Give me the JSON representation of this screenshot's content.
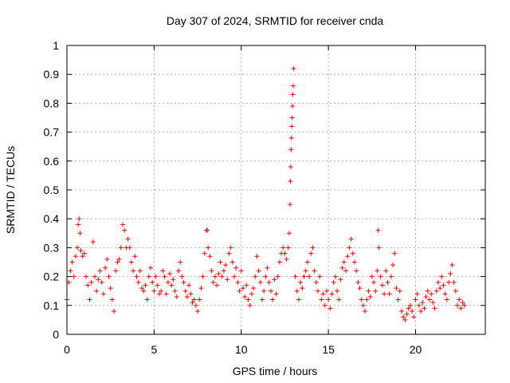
{
  "chart_data": {
    "type": "scatter",
    "title": "Day 307 of 2024, SRMTID for receiver cnda",
    "xlabel": "GPS time / hours",
    "ylabel": "SRMTID / TECUs",
    "xlim": [
      0,
      24
    ],
    "ylim": [
      0,
      1
    ],
    "xticks": [
      0,
      5,
      10,
      15,
      20
    ],
    "xtick_labels": [
      "0",
      "5",
      "10",
      "15",
      "20"
    ],
    "yticks": [
      0,
      0.1,
      0.2,
      0.3,
      0.4,
      0.5,
      0.6,
      0.7,
      0.8,
      0.9,
      1
    ],
    "ytick_labels": [
      "0",
      "0.1",
      "0.2",
      "0.3",
      "0.4",
      "0.5",
      "0.6",
      "0.7",
      "0.8",
      "0.9",
      "1"
    ],
    "grid": true,
    "marker": "+",
    "marker_color": "#ff0000",
    "series": [
      {
        "name": "SRMTID",
        "points": [
          [
            0.0,
            0.12
          ],
          [
            0.1,
            0.18
          ],
          [
            0.2,
            0.22
          ],
          [
            0.3,
            0.25
          ],
          [
            0.4,
            0.2
          ],
          [
            0.5,
            0.27
          ],
          [
            0.6,
            0.3
          ],
          [
            0.65,
            0.38
          ],
          [
            0.7,
            0.4
          ],
          [
            0.75,
            0.35
          ],
          [
            0.8,
            0.29
          ],
          [
            0.9,
            0.27
          ],
          [
            1.0,
            0.28
          ],
          [
            1.1,
            0.2
          ],
          [
            1.2,
            0.17
          ],
          [
            1.3,
            0.12
          ],
          [
            1.4,
            0.18
          ],
          [
            1.5,
            0.32
          ],
          [
            1.6,
            0.2
          ],
          [
            1.7,
            0.15
          ],
          [
            1.8,
            0.19
          ],
          [
            1.9,
            0.22
          ],
          [
            2.0,
            0.18
          ],
          [
            2.1,
            0.14
          ],
          [
            2.2,
            0.23
          ],
          [
            2.3,
            0.26
          ],
          [
            2.4,
            0.2
          ],
          [
            2.5,
            0.16
          ],
          [
            2.6,
            0.12
          ],
          [
            2.7,
            0.08
          ],
          [
            2.8,
            0.22
          ],
          [
            2.9,
            0.25
          ],
          [
            3.0,
            0.26
          ],
          [
            3.1,
            0.3
          ],
          [
            3.2,
            0.38
          ],
          [
            3.3,
            0.36
          ],
          [
            3.4,
            0.3
          ],
          [
            3.5,
            0.33
          ],
          [
            3.6,
            0.3
          ],
          [
            3.7,
            0.25
          ],
          [
            3.8,
            0.22
          ],
          [
            3.9,
            0.27
          ],
          [
            4.0,
            0.2
          ],
          [
            4.1,
            0.18
          ],
          [
            4.2,
            0.22
          ],
          [
            4.3,
            0.16
          ],
          [
            4.4,
            0.15
          ],
          [
            4.5,
            0.17
          ],
          [
            4.6,
            0.12
          ],
          [
            4.7,
            0.2
          ],
          [
            4.8,
            0.23
          ],
          [
            4.9,
            0.18
          ],
          [
            5.0,
            0.15
          ],
          [
            5.1,
            0.2
          ],
          [
            5.2,
            0.17
          ],
          [
            5.3,
            0.14
          ],
          [
            5.4,
            0.15
          ],
          [
            5.5,
            0.22
          ],
          [
            5.6,
            0.2
          ],
          [
            5.7,
            0.14
          ],
          [
            5.8,
            0.18
          ],
          [
            5.9,
            0.21
          ],
          [
            6.0,
            0.17
          ],
          [
            6.1,
            0.19
          ],
          [
            6.2,
            0.15
          ],
          [
            6.3,
            0.13
          ],
          [
            6.4,
            0.22
          ],
          [
            6.5,
            0.25
          ],
          [
            6.6,
            0.2
          ],
          [
            6.7,
            0.18
          ],
          [
            6.8,
            0.15
          ],
          [
            6.9,
            0.13
          ],
          [
            7.0,
            0.17
          ],
          [
            7.1,
            0.14
          ],
          [
            7.2,
            0.11
          ],
          [
            7.3,
            0.12
          ],
          [
            7.4,
            0.1
          ],
          [
            7.5,
            0.08
          ],
          [
            7.6,
            0.12
          ],
          [
            7.7,
            0.16
          ],
          [
            7.8,
            0.2
          ],
          [
            7.9,
            0.28
          ],
          [
            8.0,
            0.36
          ],
          [
            8.05,
            0.36
          ],
          [
            8.1,
            0.3
          ],
          [
            8.2,
            0.27
          ],
          [
            8.3,
            0.22
          ],
          [
            8.4,
            0.18
          ],
          [
            8.5,
            0.2
          ],
          [
            8.6,
            0.17
          ],
          [
            8.7,
            0.21
          ],
          [
            8.8,
            0.25
          ],
          [
            8.9,
            0.2
          ],
          [
            9.0,
            0.22
          ],
          [
            9.1,
            0.24
          ],
          [
            9.2,
            0.19
          ],
          [
            9.3,
            0.28
          ],
          [
            9.4,
            0.3
          ],
          [
            9.5,
            0.25
          ],
          [
            9.6,
            0.2
          ],
          [
            9.7,
            0.23
          ],
          [
            9.8,
            0.18
          ],
          [
            9.9,
            0.15
          ],
          [
            10.0,
            0.22
          ],
          [
            10.1,
            0.16
          ],
          [
            10.2,
            0.13
          ],
          [
            10.3,
            0.17
          ],
          [
            10.4,
            0.12
          ],
          [
            10.5,
            0.1
          ],
          [
            10.6,
            0.14
          ],
          [
            10.7,
            0.16
          ],
          [
            10.8,
            0.2
          ],
          [
            10.9,
            0.27
          ],
          [
            11.0,
            0.22
          ],
          [
            11.1,
            0.18
          ],
          [
            11.2,
            0.12
          ],
          [
            11.3,
            0.15
          ],
          [
            11.4,
            0.2
          ],
          [
            11.5,
            0.23
          ],
          [
            11.6,
            0.18
          ],
          [
            11.7,
            0.15
          ],
          [
            11.8,
            0.12
          ],
          [
            11.9,
            0.19
          ],
          [
            12.0,
            0.14
          ],
          [
            12.1,
            0.2
          ],
          [
            12.2,
            0.25
          ],
          [
            12.3,
            0.28
          ],
          [
            12.4,
            0.3
          ],
          [
            12.5,
            0.28
          ],
          [
            12.6,
            0.26
          ],
          [
            12.7,
            0.3
          ],
          [
            12.75,
            0.35
          ],
          [
            12.8,
            0.45
          ],
          [
            12.82,
            0.53
          ],
          [
            12.84,
            0.58
          ],
          [
            12.86,
            0.64
          ],
          [
            12.88,
            0.68
          ],
          [
            12.9,
            0.72
          ],
          [
            12.92,
            0.75
          ],
          [
            12.94,
            0.79
          ],
          [
            12.96,
            0.83
          ],
          [
            12.98,
            0.86
          ],
          [
            13.0,
            0.92
          ],
          [
            13.1,
            0.2
          ],
          [
            13.2,
            0.15
          ],
          [
            13.3,
            0.12
          ],
          [
            13.4,
            0.18
          ],
          [
            13.5,
            0.16
          ],
          [
            13.6,
            0.2
          ],
          [
            13.7,
            0.22
          ],
          [
            13.8,
            0.25
          ],
          [
            13.9,
            0.2
          ],
          [
            14.0,
            0.28
          ],
          [
            14.1,
            0.3
          ],
          [
            14.2,
            0.22
          ],
          [
            14.3,
            0.18
          ],
          [
            14.4,
            0.15
          ],
          [
            14.5,
            0.2
          ],
          [
            14.6,
            0.12
          ],
          [
            14.7,
            0.14
          ],
          [
            14.8,
            0.1
          ],
          [
            14.9,
            0.15
          ],
          [
            15.0,
            0.12
          ],
          [
            15.1,
            0.09
          ],
          [
            15.2,
            0.14
          ],
          [
            15.3,
            0.18
          ],
          [
            15.4,
            0.2
          ],
          [
            15.5,
            0.15
          ],
          [
            15.6,
            0.12
          ],
          [
            15.7,
            0.19
          ],
          [
            15.8,
            0.23
          ],
          [
            15.9,
            0.25
          ],
          [
            16.0,
            0.22
          ],
          [
            16.1,
            0.27
          ],
          [
            16.2,
            0.3
          ],
          [
            16.3,
            0.33
          ],
          [
            16.4,
            0.28
          ],
          [
            16.5,
            0.25
          ],
          [
            16.6,
            0.22
          ],
          [
            16.7,
            0.18
          ],
          [
            16.8,
            0.16
          ],
          [
            16.9,
            0.12
          ],
          [
            17.0,
            0.1
          ],
          [
            17.1,
            0.08
          ],
          [
            17.2,
            0.12
          ],
          [
            17.3,
            0.15
          ],
          [
            17.4,
            0.13
          ],
          [
            17.5,
            0.2
          ],
          [
            17.6,
            0.18
          ],
          [
            17.7,
            0.15
          ],
          [
            17.8,
            0.22
          ],
          [
            17.85,
            0.36
          ],
          [
            17.9,
            0.3
          ],
          [
            18.0,
            0.2
          ],
          [
            18.1,
            0.17
          ],
          [
            18.2,
            0.14
          ],
          [
            18.3,
            0.22
          ],
          [
            18.4,
            0.18
          ],
          [
            18.5,
            0.14
          ],
          [
            18.6,
            0.2
          ],
          [
            18.7,
            0.24
          ],
          [
            18.8,
            0.28
          ],
          [
            18.9,
            0.16
          ],
          [
            19.0,
            0.12
          ],
          [
            19.1,
            0.15
          ],
          [
            19.2,
            0.08
          ],
          [
            19.3,
            0.06
          ],
          [
            19.4,
            0.05
          ],
          [
            19.5,
            0.07
          ],
          [
            19.6,
            0.09
          ],
          [
            19.7,
            0.1
          ],
          [
            19.8,
            0.08
          ],
          [
            19.9,
            0.06
          ],
          [
            20.0,
            0.12
          ],
          [
            20.1,
            0.14
          ],
          [
            20.2,
            0.1
          ],
          [
            20.3,
            0.08
          ],
          [
            20.4,
            0.11
          ],
          [
            20.5,
            0.09
          ],
          [
            20.6,
            0.13
          ],
          [
            20.7,
            0.15
          ],
          [
            20.8,
            0.12
          ],
          [
            20.9,
            0.14
          ],
          [
            21.0,
            0.11
          ],
          [
            21.1,
            0.09
          ],
          [
            21.2,
            0.15
          ],
          [
            21.3,
            0.18
          ],
          [
            21.4,
            0.16
          ],
          [
            21.5,
            0.2
          ],
          [
            21.6,
            0.17
          ],
          [
            21.7,
            0.14
          ],
          [
            21.8,
            0.12
          ],
          [
            21.9,
            0.18
          ],
          [
            22.0,
            0.21
          ],
          [
            22.1,
            0.24
          ],
          [
            22.2,
            0.18
          ],
          [
            22.3,
            0.15
          ],
          [
            22.4,
            0.1
          ],
          [
            22.5,
            0.12
          ],
          [
            22.6,
            0.09
          ],
          [
            22.7,
            0.11
          ],
          [
            22.8,
            0.1
          ]
        ]
      }
    ]
  }
}
